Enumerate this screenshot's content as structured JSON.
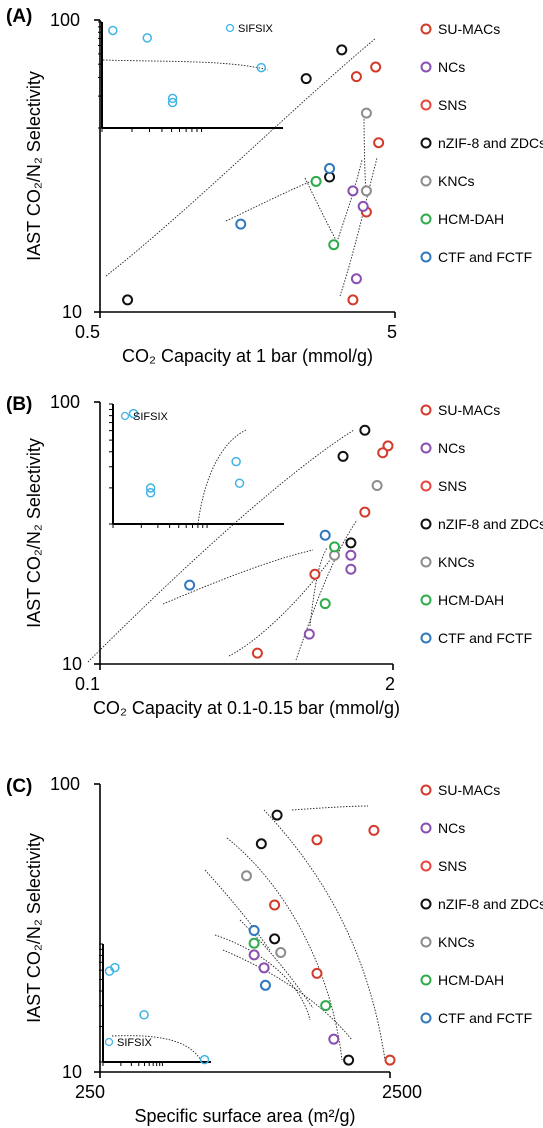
{
  "chart_data": [
    {
      "type": "scatter",
      "panel_label": "(A)",
      "xlabel": "CO₂ Capacity at 1 bar (mmol/g)",
      "ylabel": "IAST CO₂/N₂ Selectivity",
      "x_scale": "log",
      "y_scale": "log",
      "xlim": [
        0.5,
        5
      ],
      "ylim": [
        10,
        100
      ],
      "x_tick_labels": [
        "0.5",
        "5"
      ],
      "y_tick_labels": [
        "10",
        "100"
      ],
      "series": [
        {
          "name": "SU-MACs",
          "color": "#d23a2a",
          "points": [
            [
              3.7,
              64
            ],
            [
              4.3,
              69
            ],
            [
              4.4,
              38
            ],
            [
              3.6,
              11
            ],
            [
              4.0,
              22
            ]
          ]
        },
        {
          "name": "NCs",
          "color": "#8a4fb0",
          "points": [
            [
              3.6,
              26
            ],
            [
              3.9,
              23
            ],
            [
              3.7,
              13
            ]
          ]
        },
        {
          "name": "SNS",
          "color": "#e8453c",
          "points": []
        },
        {
          "name": "nZIF-8 and ZDCs",
          "color": "#111111",
          "points": [
            [
              2.5,
              63
            ],
            [
              3.3,
              79
            ],
            [
              3.0,
              29
            ],
            [
              0.62,
              11
            ]
          ]
        },
        {
          "name": "KNCs",
          "color": "#8d8d8d",
          "points": [
            [
              4.0,
              48
            ],
            [
              4.0,
              26
            ]
          ]
        },
        {
          "name": "HCM-DAH",
          "color": "#2eac4a",
          "points": [
            [
              2.7,
              28
            ],
            [
              3.1,
              17
            ]
          ]
        },
        {
          "name": "CTF and FCTF",
          "color": "#2f78c0",
          "points": [
            [
              1.5,
              20
            ],
            [
              3.0,
              31
            ]
          ]
        }
      ],
      "inset": {
        "label": "SIFSIX",
        "color": "#3fb4e5",
        "points": [
          [
            0.25,
            0.85
          ],
          [
            0.39,
            0.28
          ],
          [
            0.39,
            0.24
          ],
          [
            0.88,
            0.57
          ],
          [
            0.06,
            0.92
          ]
        ]
      }
    },
    {
      "type": "scatter",
      "panel_label": "(B)",
      "xlabel": "CO₂ Capacity at 0.1-0.15 bar (mmol/g)",
      "ylabel": "IAST CO₂/N₂ Selectivity",
      "x_scale": "log",
      "y_scale": "log",
      "xlim": [
        0.1,
        2
      ],
      "ylim": [
        10,
        100
      ],
      "x_tick_labels": [
        "0.1",
        "2"
      ],
      "y_tick_labels": [
        "10",
        "100"
      ],
      "series": [
        {
          "name": "SU-MACs",
          "color": "#d23a2a",
          "points": [
            [
              1.9,
              68
            ],
            [
              1.8,
              64
            ],
            [
              1.5,
              38
            ],
            [
              0.9,
              22
            ],
            [
              0.5,
              11
            ]
          ]
        },
        {
          "name": "NCs",
          "color": "#8a4fb0",
          "points": [
            [
              1.3,
              26
            ],
            [
              1.3,
              23
            ],
            [
              0.85,
              13
            ]
          ]
        },
        {
          "name": "SNS",
          "color": "#e8453c",
          "points": []
        },
        {
          "name": "nZIF-8 and ZDCs",
          "color": "#111111",
          "points": [
            [
              1.5,
              78
            ],
            [
              1.2,
              62
            ],
            [
              1.3,
              29
            ]
          ]
        },
        {
          "name": "KNCs",
          "color": "#8d8d8d",
          "points": [
            [
              1.7,
              48
            ],
            [
              1.1,
              26
            ]
          ]
        },
        {
          "name": "HCM-DAH",
          "color": "#2eac4a",
          "points": [
            [
              1.1,
              28
            ],
            [
              1.0,
              17
            ]
          ]
        },
        {
          "name": "CTF and FCTF",
          "color": "#2f78c0",
          "points": [
            [
              1.0,
              31
            ],
            [
              0.25,
              20
            ]
          ]
        }
      ],
      "inset": {
        "label": "SIFSIX",
        "color": "#3fb4e5",
        "points": [
          [
            0.12,
            0.92
          ],
          [
            0.22,
            0.3
          ],
          [
            0.22,
            0.26
          ],
          [
            0.72,
            0.52
          ],
          [
            0.74,
            0.34
          ]
        ]
      }
    },
    {
      "type": "scatter",
      "panel_label": "(C)",
      "xlabel": "Specific surface area (m²/g)",
      "ylabel": "IAST CO₂/N₂ Selectivity",
      "x_scale": "log",
      "y_scale": "log",
      "xlim": [
        250,
        2500
      ],
      "ylim": [
        10,
        100
      ],
      "x_tick_labels": [
        "250",
        "2500"
      ],
      "y_tick_labels": [
        "10",
        "100"
      ],
      "series": [
        {
          "name": "SU-MACs",
          "color": "#d23a2a",
          "points": [
            [
              1400,
              64
            ],
            [
              2200,
              69
            ],
            [
              1000,
              38
            ],
            [
              1400,
              22
            ],
            [
              2500,
              11
            ]
          ]
        },
        {
          "name": "NCs",
          "color": "#8a4fb0",
          "points": [
            [
              850,
              25.5
            ],
            [
              920,
              23
            ],
            [
              1600,
              13
            ]
          ]
        },
        {
          "name": "SNS",
          "color": "#e8453c",
          "points": []
        },
        {
          "name": "nZIF-8 and ZDCs",
          "color": "#111111",
          "points": [
            [
              900,
              62
            ],
            [
              1020,
              78
            ],
            [
              1000,
              29
            ],
            [
              1800,
              11
            ]
          ]
        },
        {
          "name": "KNCs",
          "color": "#8d8d8d",
          "points": [
            [
              800,
              48
            ],
            [
              1050,
              26
            ]
          ]
        },
        {
          "name": "HCM-DAH",
          "color": "#2eac4a",
          "points": [
            [
              850,
              28
            ],
            [
              1500,
              17
            ]
          ]
        },
        {
          "name": "CTF and FCTF",
          "color": "#2f78c0",
          "points": [
            [
              850,
              31
            ],
            [
              930,
              20
            ]
          ]
        }
      ],
      "inset": {
        "label": "SIFSIX",
        "color": "#3fb4e5",
        "points": [
          [
            0.06,
            0.77
          ],
          [
            0.11,
            0.8
          ],
          [
            0.38,
            0.4
          ],
          [
            0.94,
            0.02
          ]
        ]
      }
    }
  ],
  "legend": [
    {
      "label": "SU-MACs",
      "color": "#d23a2a"
    },
    {
      "label": "NCs",
      "color": "#8a4fb0"
    },
    {
      "label": "SNS",
      "color": "#e8453c"
    },
    {
      "label": "nZIF-8 and ZDCs",
      "color": "#111111"
    },
    {
      "label": "KNCs",
      "color": "#8d8d8d"
    },
    {
      "label": "HCM-DAH",
      "color": "#2eac4a"
    },
    {
      "label": "CTF and FCTF",
      "color": "#2f78c0"
    }
  ]
}
